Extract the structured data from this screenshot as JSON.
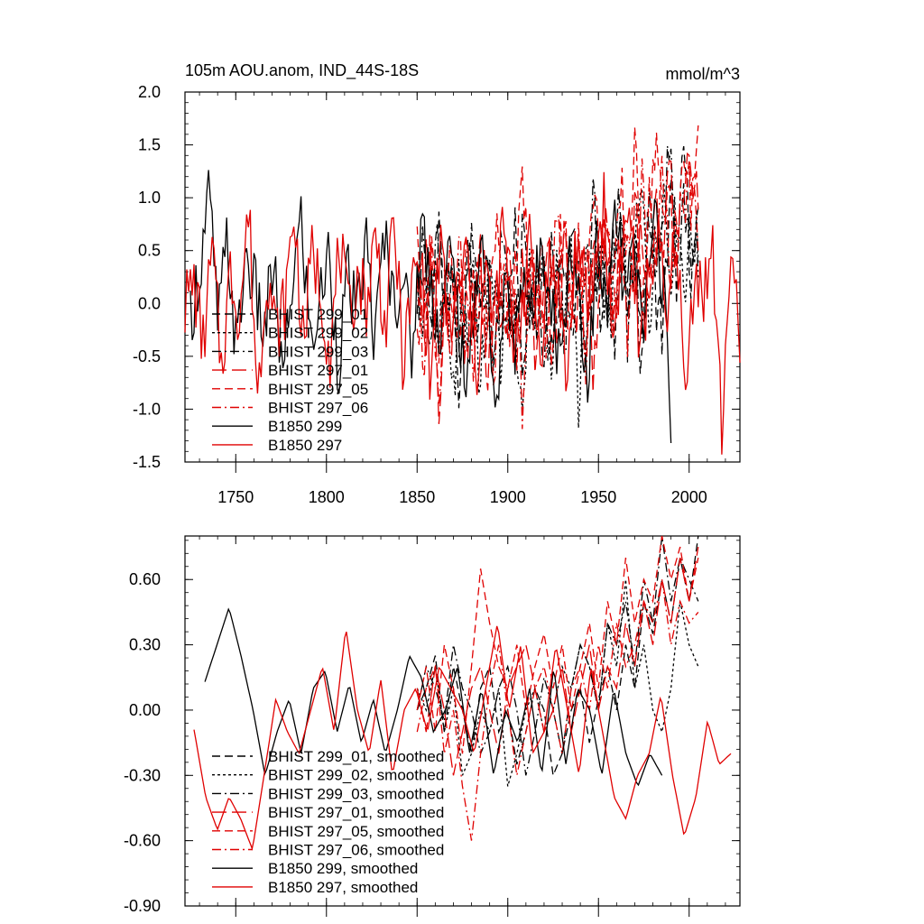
{
  "chart_data": [
    {
      "type": "line",
      "title": "105m AOU.anom, IND_44S-18S",
      "units": "mmol/m^3",
      "xlim": [
        1722,
        2028
      ],
      "ylim": [
        -1.5,
        2.0
      ],
      "x_ticks": [
        1750,
        1800,
        1850,
        1900,
        1950,
        2000
      ],
      "y_ticks": [
        2.0,
        1.5,
        1.0,
        0.5,
        0.0,
        -0.5,
        -1.0,
        -1.5
      ],
      "y_tick_labels": [
        "2.0",
        "1.5",
        "1.0",
        "0.5",
        "0.0",
        "-0.5",
        "-1.0",
        "-1.5"
      ],
      "x_tick_labels": [
        "1750",
        "1800",
        "1850",
        "1900",
        "1950",
        "2000"
      ],
      "legend_position": "lower-left",
      "series": [
        {
          "name": "BHIST 299_01",
          "color": "#000000",
          "dash": "dashed",
          "x_start": 1850,
          "x_end": 2005,
          "shape": [
            0.1,
            0.3,
            -0.4,
            0.6,
            -0.2,
            0.2,
            -0.8,
            0.5,
            0.0,
            -0.3,
            0.4,
            -0.6,
            0.2,
            -0.1,
            0.7,
            -0.5,
            0.3,
            -0.2,
            0.5,
            -0.4,
            0.1,
            0.6,
            -0.3,
            0.2,
            -0.7,
            0.4,
            0.0,
            0.3,
            -0.5,
            0.8,
            -0.2,
            0.5,
            -0.6,
            0.9,
            0.1,
            -0.3,
            1.1,
            0.2,
            1.5,
            0.3,
            0.6
          ]
        },
        {
          "name": "BHIST 299_02",
          "color": "#000000",
          "dash": "dotted",
          "x_start": 1850,
          "x_end": 2005,
          "shape": [
            0.0,
            -0.2,
            0.4,
            -0.5,
            0.3,
            -1.1,
            0.2,
            -0.4,
            0.5,
            -0.9,
            0.1,
            0.3,
            -0.6,
            0.4,
            -0.3,
            -1.1,
            0.2,
            0.0,
            0.5,
            -0.7,
            0.3,
            -0.2,
            0.6,
            -1.0,
            0.4,
            0.1,
            0.7,
            -0.4,
            0.2,
            0.8,
            -0.3,
            0.5,
            1.0,
            -0.1,
            0.6,
            1.2,
            0.3,
            0.9,
            0.2,
            0.7,
            0.5
          ]
        },
        {
          "name": "BHIST 299_03",
          "color": "#000000",
          "dash": "dashdot",
          "x_start": 1850,
          "x_end": 2005,
          "shape": [
            0.2,
            0.5,
            -0.3,
            0.7,
            -0.1,
            0.4,
            -0.5,
            0.3,
            0.8,
            -0.2,
            0.1,
            -0.6,
            0.5,
            0.2,
            -0.4,
            0.6,
            -0.1,
            0.3,
            -0.8,
            0.4,
            0.2,
            -0.3,
            0.7,
            0.0,
            -0.5,
            0.9,
            0.3,
            -0.2,
            0.6,
            1.0,
            0.1,
            0.5,
            -0.4,
            1.2,
            0.4,
            0.8,
            1.6,
            0.2,
            1.0,
            0.5,
            0.3
          ]
        },
        {
          "name": "BHIST 297_01",
          "color": "#e00000",
          "dash": "longdash",
          "x_start": 1850,
          "x_end": 2005,
          "shape": [
            0.3,
            -0.4,
            0.6,
            -1.0,
            0.2,
            -0.3,
            0.5,
            -0.6,
            0.1,
            0.4,
            -0.8,
            0.3,
            -0.2,
            0.6,
            -0.5,
            0.2,
            0.0,
            -0.7,
            0.4,
            0.3,
            -0.4,
            0.7,
            -0.2,
            0.1,
            0.5,
            -0.6,
            0.3,
            0.8,
            -0.1,
            0.6,
            -0.3,
            1.0,
            0.4,
            -0.2,
            0.9,
            0.3,
            1.3,
            0.5,
            0.8,
            1.4,
            1.0
          ]
        },
        {
          "name": "BHIST 297_05",
          "color": "#e00000",
          "dash": "dashed",
          "x_start": 1850,
          "x_end": 2005,
          "shape": [
            0.5,
            0.1,
            0.7,
            -0.3,
            0.4,
            0.2,
            -0.5,
            0.6,
            0.0,
            0.3,
            -0.4,
            0.8,
            0.2,
            -0.2,
            0.5,
            1.0,
            0.3,
            -0.1,
            0.6,
            -0.5,
            0.4,
            0.9,
            0.1,
            0.5,
            -0.3,
            1.2,
            0.4,
            0.7,
            0.0,
            1.1,
            0.5,
            1.4,
            0.2,
            0.9,
            1.6,
            0.6,
            1.2,
            0.3,
            1.5,
            0.8,
            1.7
          ]
        },
        {
          "name": "BHIST 297_06",
          "color": "#e00000",
          "dash": "dashdot",
          "x_start": 1850,
          "x_end": 2005,
          "shape": [
            0.0,
            -0.5,
            0.3,
            -1.1,
            0.2,
            -0.4,
            0.5,
            -0.2,
            -0.8,
            0.3,
            0.1,
            -0.6,
            0.4,
            -0.3,
            0.2,
            -0.9,
            0.5,
            0.0,
            -0.4,
            0.3,
            0.6,
            -0.2,
            0.1,
            0.7,
            -0.5,
            0.4,
            0.2,
            0.9,
            -0.1,
            0.5,
            0.8,
            0.2,
            1.1,
            0.4,
            0.7,
            1.3,
            0.3,
            0.9,
            0.6,
            1.2,
            0.8
          ]
        },
        {
          "name": "B1850 299",
          "color": "#000000",
          "dash": "solid",
          "x_start": 1725,
          "x_end": 1990,
          "shape": [
            -0.1,
            0.3,
            1.05,
            -0.2,
            0.6,
            -0.5,
            0.5,
            0.1,
            -0.3,
            0.4,
            -0.8,
            0.2,
            0.8,
            -0.4,
            0.0,
            0.5,
            -0.6,
            0.3,
            -0.2,
            0.6,
            -0.4,
            0.7,
            0.0,
            0.3,
            -0.5,
            0.8,
            0.2,
            -0.3,
            0.5,
            -0.1,
            -0.9,
            0.4,
            0.6,
            -1.3,
            0.3,
            -0.5,
            0.4,
            -0.2,
            0.7,
            0.1,
            -0.6,
            0.5,
            0.2,
            -0.8,
            0.6,
            -0.2,
            0.9,
            0.0,
            0.5,
            -0.4,
            1.0,
            0.3,
            -1.0
          ]
        },
        {
          "name": "B1850 297",
          "color": "#e00000",
          "dash": "solid",
          "x_start": 1722,
          "x_end": 2028,
          "shape": [
            0.0,
            0.2,
            -0.4,
            0.5,
            -0.6,
            0.3,
            -0.1,
            0.9,
            -0.9,
            0.4,
            -0.3,
            0.0,
            0.9,
            -0.4,
            0.5,
            0.1,
            -0.5,
            0.6,
            -0.2,
            0.3,
            0.0,
            0.7,
            -0.3,
            0.8,
            -0.6,
            0.2,
            0.4,
            -0.8,
            0.6,
            -0.3,
            0.1,
            0.5,
            -0.7,
            0.3,
            -0.2,
            0.8,
            -0.4,
            0.0,
            0.6,
            -0.5,
            0.4,
            0.2,
            -0.8,
            0.7,
            -0.1,
            0.3,
            1.0,
            -0.4,
            0.5,
            0.9,
            -0.6,
            0.3,
            0.6,
            -0.3,
            0.8,
            -1.0,
            0.4,
            0.1,
            0.5,
            -1.2,
            0.6,
            -0.6
          ]
        }
      ]
    },
    {
      "type": "line",
      "title": "",
      "xlim": [
        1722,
        2028
      ],
      "ylim": [
        -0.9,
        0.8
      ],
      "y_ticks": [
        0.6,
        0.3,
        0.0,
        -0.3,
        -0.6,
        -0.9
      ],
      "y_tick_labels": [
        "0.60",
        "0.30",
        "0.00",
        "-0.30",
        "-0.60",
        "-0.90"
      ],
      "x_ticks": [
        1750,
        1800,
        1850,
        1900,
        1950,
        2000
      ],
      "legend_position": "lower-left",
      "series": [
        {
          "name": "BHIST 299_01, smoothed",
          "color": "#000000",
          "dash": "dashed",
          "x_start": 1850,
          "x_end": 2005,
          "shape": [
            0.0,
            0.1,
            0.25,
            -0.1,
            0.2,
            0.0,
            -0.2,
            0.1,
            0.2,
            -0.1,
            0.0,
            -0.25,
            -0.1,
            0.1,
            0.0,
            -0.3,
            -0.2,
            0.0,
            0.1,
            -0.15,
            0.05,
            0.2,
            0.0,
            0.3,
            0.1,
            0.5,
            0.35,
            0.6,
            0.4,
            0.7,
            0.5,
            0.8
          ]
        },
        {
          "name": "BHIST 299_02, smoothed",
          "color": "#000000",
          "dash": "dotted",
          "x_start": 1850,
          "x_end": 2005,
          "shape": [
            0.1,
            0.0,
            0.2,
            -0.1,
            0.1,
            -0.3,
            -0.2,
            0.0,
            -0.1,
            0.1,
            -0.35,
            -0.2,
            0.0,
            0.1,
            -0.1,
            0.0,
            0.2,
            0.1,
            0.3,
            0.2,
            0.0,
            0.4,
            0.2,
            0.6,
            0.1,
            0.3,
            0.0,
            -0.1,
            0.1,
            0.5,
            0.3,
            0.2
          ]
        },
        {
          "name": "BHIST 299_03, smoothed",
          "color": "#000000",
          "dash": "dashdot",
          "x_start": 1850,
          "x_end": 2005,
          "shape": [
            0.0,
            0.2,
            0.1,
            -0.05,
            0.3,
            0.1,
            0.0,
            -0.2,
            -0.1,
            0.1,
            0.2,
            0.0,
            -0.3,
            -0.1,
            0.15,
            0.0,
            -0.2,
            0.1,
            0.3,
            0.2,
            0.0,
            0.4,
            0.3,
            0.5,
            0.2,
            0.6,
            0.4,
            0.8,
            0.5,
            0.7,
            0.6,
            0.5
          ]
        },
        {
          "name": "BHIST 297_01, smoothed",
          "color": "#e00000",
          "dash": "longdash",
          "x_start": 1850,
          "x_end": 2005,
          "shape": [
            0.1,
            -0.1,
            0.2,
            0.0,
            -0.3,
            -0.1,
            0.1,
            0.2,
            0.0,
            -0.2,
            0.1,
            0.2,
            0.3,
            0.1,
            -0.1,
            0.0,
            0.2,
            -0.1,
            0.1,
            0.3,
            0.0,
            0.2,
            0.1,
            0.4,
            0.2,
            0.5,
            0.3,
            0.6,
            0.4,
            0.7,
            0.5,
            0.75
          ]
        },
        {
          "name": "BHIST 297_05, smoothed",
          "color": "#e00000",
          "dash": "dashed",
          "x_start": 1850,
          "x_end": 2005,
          "shape": [
            0.0,
            0.2,
            -0.1,
            0.3,
            0.1,
            -0.2,
            0.2,
            0.65,
            0.4,
            0.2,
            0.1,
            0.3,
            0.0,
            0.2,
            0.35,
            0.1,
            0.3,
            0.0,
            0.2,
            0.4,
            0.1,
            0.5,
            0.3,
            0.7,
            0.4,
            0.6,
            0.5,
            0.8,
            0.6,
            0.75,
            0.5,
            0.7
          ]
        },
        {
          "name": "BHIST 297_06, smoothed",
          "color": "#e00000",
          "dash": "dashdot",
          "x_start": 1850,
          "x_end": 2005,
          "shape": [
            -0.1,
            0.1,
            0.2,
            -0.2,
            0.0,
            -0.35,
            -0.6,
            -0.2,
            0.1,
            0.3,
            0.0,
            -0.3,
            -0.1,
            0.1,
            0.2,
            0.0,
            -0.2,
            0.1,
            0.2,
            0.0,
            0.3,
            0.1,
            0.4,
            0.2,
            0.3,
            0.5,
            0.4,
            0.6,
            0.3,
            0.5,
            0.4,
            0.45
          ]
        },
        {
          "name": "B1850 299, smoothed",
          "color": "#000000",
          "dash": "solid",
          "x_start": 1733,
          "x_end": 1985,
          "shape": [
            0.13,
            0.3,
            0.47,
            0.25,
            0.0,
            -0.3,
            -0.1,
            0.05,
            -0.2,
            0.1,
            0.18,
            -0.1,
            0.12,
            -0.15,
            0.05,
            -0.2,
            0.0,
            0.25,
            0.15,
            -0.1,
            0.0,
            0.2,
            -0.2,
            0.1,
            -0.3,
            0.0,
            -0.15,
            0.1,
            -0.3,
            0.2,
            -0.25,
            0.1,
            0.0,
            -0.3,
            0.1,
            -0.2,
            -0.35,
            -0.2,
            -0.3
          ]
        },
        {
          "name": "B1850 297, smoothed",
          "color": "#e00000",
          "dash": "solid",
          "x_start": 1727,
          "x_end": 2023,
          "shape": [
            -0.09,
            -0.4,
            -0.55,
            -0.4,
            -0.5,
            -0.64,
            -0.3,
            0.05,
            -0.1,
            -0.2,
            0.0,
            0.2,
            -0.1,
            0.38,
            0.0,
            -0.2,
            0.14,
            -0.3,
            0.0,
            0.1,
            -0.1,
            0.2,
            0.1,
            0.0,
            -0.2,
            0.1,
            0.4,
            0.0,
            0.3,
            -0.2,
            -0.1,
            0.3,
            0.0,
            -0.3,
            0.2,
            -0.1,
            -0.4,
            -0.5,
            -0.3,
            -0.2,
            0.07,
            -0.3,
            -0.58,
            -0.4,
            -0.05,
            -0.25,
            -0.2
          ]
        }
      ]
    }
  ]
}
